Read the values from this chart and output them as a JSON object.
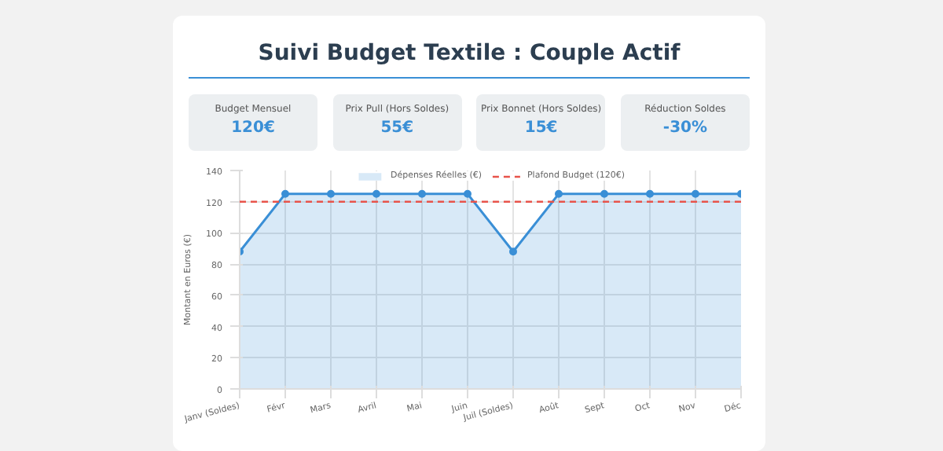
{
  "chart_data": [
    {
      "type": "other",
      "title": "Suivi Budget Textile : Couple Actif",
      "annotations": [
        "Budget Mensuel",
        "120€",
        "Prix Pull (Hors Soldes)",
        "55€",
        "Prix Bonnet (Hors Soldes)",
        "15€",
        "Réduction Soldes",
        "-30%"
      ]
    },
    {
      "type": "area",
      "ylabel": "Montant en Euros (€)",
      "categories": [
        "Janv (Soldes)",
        "Févr",
        "Mars",
        "Avril",
        "Mai",
        "Juin",
        "Juil (Soldes)",
        "Août",
        "Sept",
        "Oct",
        "Nov",
        "Déc"
      ],
      "series": [
        {
          "name": "Dépenses Réelles (€)",
          "color": "#3a8fd6",
          "values": [
            88,
            125,
            125,
            125,
            125,
            125,
            88,
            125,
            125,
            125,
            125,
            125
          ]
        }
      ],
      "ref_lines": [
        {
          "axis": "y",
          "value": 120,
          "label": "Plafond Budget (120€)",
          "color": "#e8534a",
          "line_style": "dashed"
        }
      ],
      "ylim": [
        0,
        140
      ],
      "yticks": [
        0,
        20,
        40,
        60,
        80,
        100,
        120,
        140
      ],
      "grid": true,
      "legend": "top",
      "marker": "circle"
    }
  ]
}
